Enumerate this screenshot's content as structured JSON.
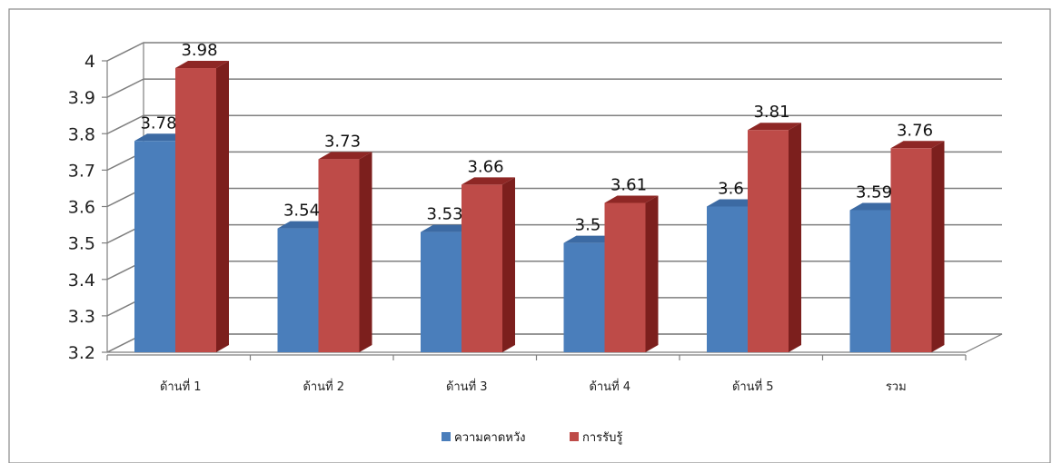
{
  "chart_data": {
    "type": "bar",
    "categories": [
      "ด้านที่ 1",
      "ด้านที่ 2",
      "ด้านที่ 3",
      "ด้านที่ 4",
      "ด้านที่ 5",
      "รวม"
    ],
    "series": [
      {
        "name": "ความคาดหวัง",
        "values": [
          3.78,
          3.54,
          3.53,
          3.5,
          3.6,
          3.59
        ],
        "color": "#4a7ebb",
        "dark": "#2d5a8c",
        "top": "#3c6aa3"
      },
      {
        "name": "การรับรู้",
        "values": [
          3.98,
          3.73,
          3.66,
          3.61,
          3.81,
          3.76
        ],
        "color": "#be4b48",
        "dark": "#7c1f1d",
        "top": "#8e2725"
      }
    ],
    "data_labels": [
      [
        "3.78",
        "3.54",
        "3.53",
        "3.5",
        "3.6",
        "3.59"
      ],
      [
        "3.98",
        "3.73",
        "3.66",
        "3.61",
        "3.81",
        "3.76"
      ]
    ],
    "yticks": [
      "3.2",
      "3.3",
      "3.4",
      "3.5",
      "3.6",
      "3.7",
      "3.8",
      "3.9",
      "4"
    ],
    "ylim": [
      3.2,
      4.0
    ],
    "grid": true,
    "legend": "bottom",
    "style": "3d-clustered-column"
  }
}
